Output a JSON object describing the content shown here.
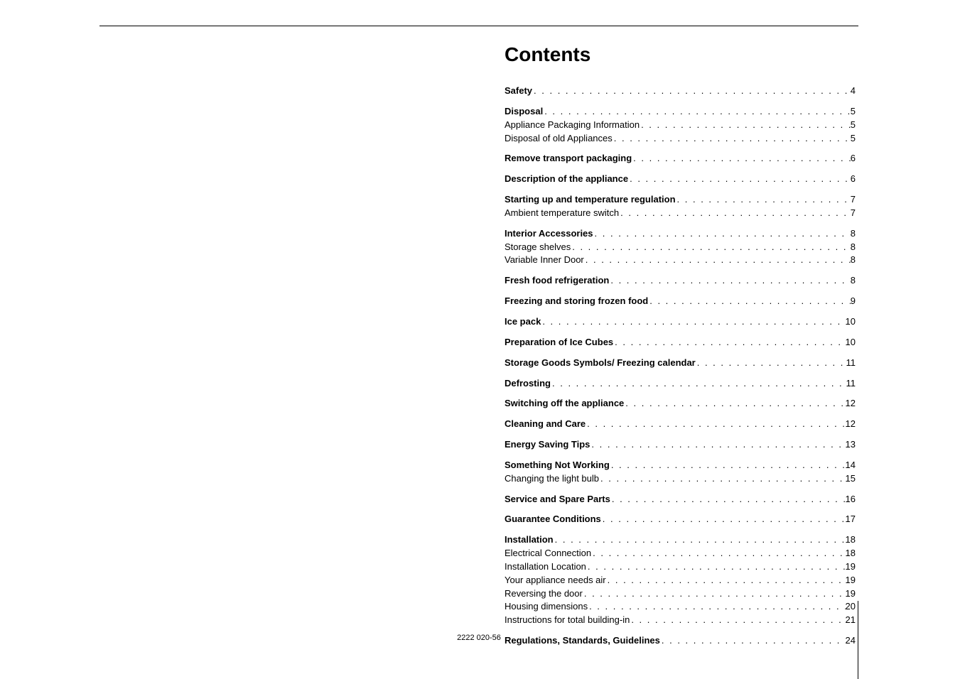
{
  "title": "Contents",
  "footer": "2222 020-56",
  "groups": [
    {
      "entries": [
        {
          "label": "Safety",
          "page": "4",
          "bold": true
        }
      ]
    },
    {
      "entries": [
        {
          "label": "Disposal",
          "page": "5",
          "bold": true
        },
        {
          "label": "Appliance Packaging Information",
          "page": "5",
          "bold": false
        },
        {
          "label": "Disposal of old Appliances",
          "page": "5",
          "bold": false
        }
      ]
    },
    {
      "entries": [
        {
          "label": "Remove transport packaging",
          "page": "6",
          "bold": true
        }
      ]
    },
    {
      "entries": [
        {
          "label": "Description of the appliance",
          "page": "6",
          "bold": true
        }
      ]
    },
    {
      "entries": [
        {
          "label": "Starting up and temperature regulation",
          "page": "7",
          "bold": true
        },
        {
          "label": "Ambient temperature switch",
          "page": "7",
          "bold": false
        }
      ]
    },
    {
      "entries": [
        {
          "label": "Interior Accessories",
          "page": "8",
          "bold": true
        },
        {
          "label": "Storage shelves",
          "page": "8",
          "bold": false
        },
        {
          "label": "Variable Inner Door",
          "page": "8",
          "bold": false
        }
      ]
    },
    {
      "entries": [
        {
          "label": "Fresh food refrigeration",
          "page": "8",
          "bold": true
        }
      ]
    },
    {
      "entries": [
        {
          "label": "Freezing and storing frozen food",
          "page": "9",
          "bold": true
        }
      ]
    },
    {
      "entries": [
        {
          "label": "Ice pack",
          "page": "10",
          "bold": true
        }
      ]
    },
    {
      "entries": [
        {
          "label": "Preparation of Ice Cubes",
          "page": "10",
          "bold": true
        }
      ]
    },
    {
      "entries": [
        {
          "label": "Storage Goods Symbols/ Freezing calendar",
          "page": "11",
          "bold": true
        }
      ]
    },
    {
      "entries": [
        {
          "label": "Defrosting",
          "page": "11",
          "bold": true
        }
      ]
    },
    {
      "entries": [
        {
          "label": "Switching off the appliance",
          "page": "12",
          "bold": true
        }
      ]
    },
    {
      "entries": [
        {
          "label": "Cleaning and Care",
          "page": "12",
          "bold": true
        }
      ]
    },
    {
      "entries": [
        {
          "label": "Energy Saving Tips",
          "page": "13",
          "bold": true
        }
      ]
    },
    {
      "entries": [
        {
          "label": "Something Not Working",
          "page": "14",
          "bold": true
        },
        {
          "label": "Changing the light bulb",
          "page": "15",
          "bold": false
        }
      ]
    },
    {
      "entries": [
        {
          "label": "Service and Spare Parts",
          "page": "16",
          "bold": true
        }
      ]
    },
    {
      "entries": [
        {
          "label": "Guarantee Conditions",
          "page": "17",
          "bold": true
        }
      ]
    },
    {
      "entries": [
        {
          "label": "Installation",
          "page": "18",
          "bold": true
        },
        {
          "label": "Electrical Connection",
          "page": "18",
          "bold": false
        },
        {
          "label": "Installation Location",
          "page": "19",
          "bold": false
        },
        {
          "label": "Your appliance needs air",
          "page": "19",
          "bold": false
        },
        {
          "label": "Reversing the door",
          "page": "19",
          "bold": false
        },
        {
          "label": "Housing dimensions",
          "page": "20",
          "bold": false
        },
        {
          "label": "Instructions for total building-in",
          "page": "21",
          "bold": false
        }
      ]
    },
    {
      "entries": [
        {
          "label": "Regulations, Standards, Guidelines",
          "page": "24",
          "bold": true
        }
      ]
    }
  ]
}
